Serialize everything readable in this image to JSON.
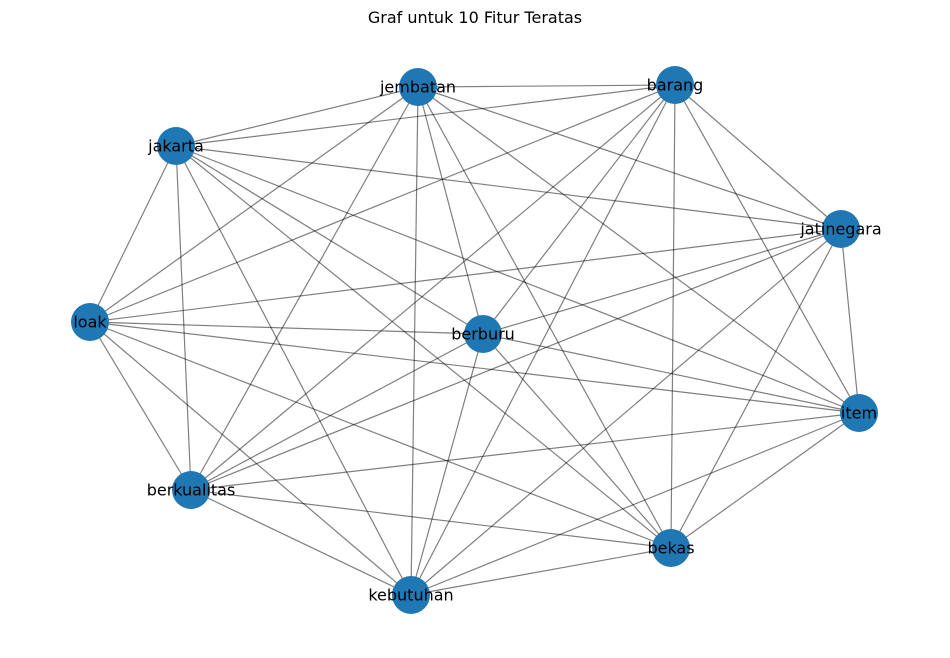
{
  "title": "Graf untuk 10 Fitur Teratas",
  "colors": {
    "node": "#1f77b4",
    "edge": "#808080",
    "label": "#000000"
  },
  "nodes": [
    {
      "id": "jembatan",
      "label": "jembatan"
    },
    {
      "id": "barang",
      "label": "barang"
    },
    {
      "id": "jakarta",
      "label": "jakarta"
    },
    {
      "id": "jatinegara",
      "label": "jatinegara"
    },
    {
      "id": "loak",
      "label": "loak"
    },
    {
      "id": "berburu",
      "label": "berburu"
    },
    {
      "id": "item",
      "label": "item"
    },
    {
      "id": "berkualitas",
      "label": "berkualitas"
    },
    {
      "id": "bekas",
      "label": "bekas"
    },
    {
      "id": "kebutuhan",
      "label": "kebutuhan"
    }
  ],
  "edges": [
    [
      "jembatan",
      "barang"
    ],
    [
      "jembatan",
      "jakarta"
    ],
    [
      "jembatan",
      "jatinegara"
    ],
    [
      "jembatan",
      "loak"
    ],
    [
      "jembatan",
      "berburu"
    ],
    [
      "jembatan",
      "item"
    ],
    [
      "jembatan",
      "berkualitas"
    ],
    [
      "jembatan",
      "bekas"
    ],
    [
      "jembatan",
      "kebutuhan"
    ],
    [
      "barang",
      "jakarta"
    ],
    [
      "barang",
      "jatinegara"
    ],
    [
      "barang",
      "loak"
    ],
    [
      "barang",
      "berburu"
    ],
    [
      "barang",
      "item"
    ],
    [
      "barang",
      "berkualitas"
    ],
    [
      "barang",
      "bekas"
    ],
    [
      "barang",
      "kebutuhan"
    ],
    [
      "jakarta",
      "jatinegara"
    ],
    [
      "jakarta",
      "loak"
    ],
    [
      "jakarta",
      "berburu"
    ],
    [
      "jakarta",
      "item"
    ],
    [
      "jakarta",
      "berkualitas"
    ],
    [
      "jakarta",
      "bekas"
    ],
    [
      "jakarta",
      "kebutuhan"
    ],
    [
      "jatinegara",
      "loak"
    ],
    [
      "jatinegara",
      "berburu"
    ],
    [
      "jatinegara",
      "item"
    ],
    [
      "jatinegara",
      "berkualitas"
    ],
    [
      "jatinegara",
      "bekas"
    ],
    [
      "jatinegara",
      "kebutuhan"
    ],
    [
      "loak",
      "berburu"
    ],
    [
      "loak",
      "item"
    ],
    [
      "loak",
      "berkualitas"
    ],
    [
      "loak",
      "bekas"
    ],
    [
      "loak",
      "kebutuhan"
    ],
    [
      "berburu",
      "item"
    ],
    [
      "berburu",
      "berkualitas"
    ],
    [
      "berburu",
      "bekas"
    ],
    [
      "berburu",
      "kebutuhan"
    ],
    [
      "item",
      "berkualitas"
    ],
    [
      "item",
      "bekas"
    ],
    [
      "item",
      "kebutuhan"
    ],
    [
      "berkualitas",
      "bekas"
    ],
    [
      "berkualitas",
      "kebutuhan"
    ],
    [
      "bekas",
      "kebutuhan"
    ]
  ]
}
